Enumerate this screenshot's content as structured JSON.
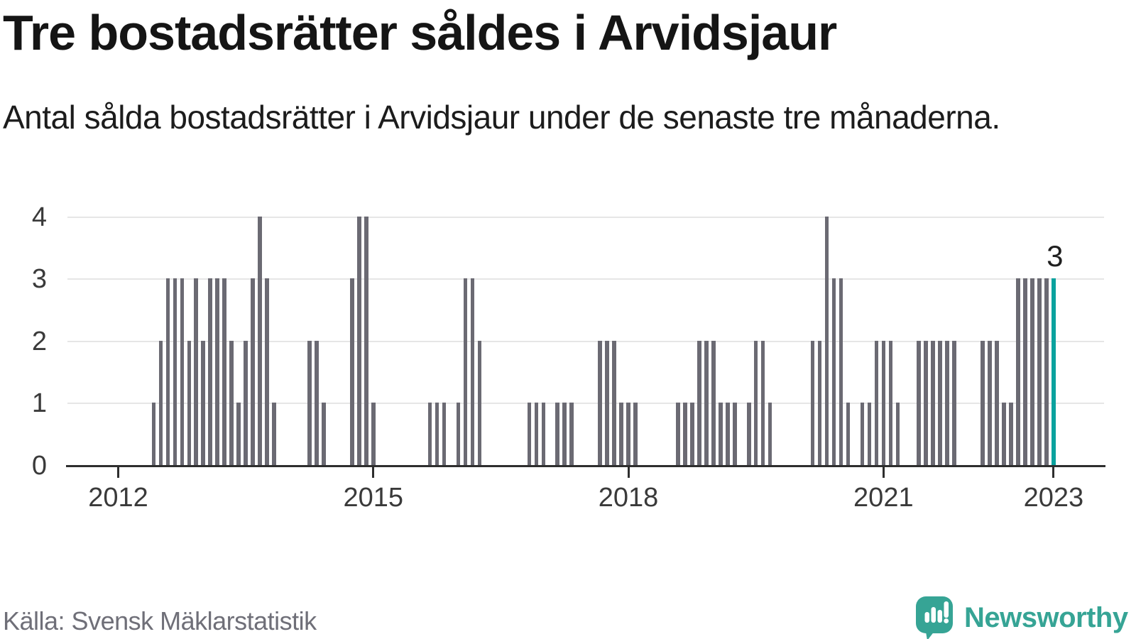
{
  "header": {
    "title": "Tre bostadsrätter såldes i Arvidsjaur",
    "subtitle": "Antal sålda bostadsrätter i Arvidsjaur under de senaste tre månaderna."
  },
  "footer": {
    "source": "Källa: Svensk Mäklarstatistik",
    "logo_text": "Newsworthy",
    "logo_icon": "speech-bubble-bar-chart-exclamation"
  },
  "colors": {
    "bar": "#6b6a73",
    "highlight": "#0aa29e",
    "grid": "#e6e6e6",
    "axis": "#2e2e2e",
    "tick_text": "#3a3a3a",
    "annotation_text": "#1f1f1f",
    "source_text": "#6f6f78",
    "logo_teal": "#36a495"
  },
  "chart_data": {
    "type": "bar",
    "title": "Tre bostadsrätter såldes i Arvidsjaur",
    "subtitle": "Antal sålda bostadsrätter i Arvidsjaur under de senaste tre månaderna.",
    "ylabel": "",
    "xlabel": "",
    "frequency": "monthly",
    "start_month": "2012-06",
    "end_month": "2023-01",
    "start_offset_months_from_jan2012": 5,
    "ylim": [
      0,
      4
    ],
    "yticks": [
      0,
      1,
      2,
      3,
      4
    ],
    "grid": "horizontal",
    "legend": "none",
    "xticks": [
      {
        "label": "2012",
        "month_index": 0
      },
      {
        "label": "2015",
        "month_index": 36
      },
      {
        "label": "2018",
        "month_index": 72
      },
      {
        "label": "2021",
        "month_index": 108
      },
      {
        "label": "2023",
        "month_index": 132
      }
    ],
    "highlight_last": true,
    "last_value_label": "3",
    "values": [
      1,
      2,
      3,
      3,
      3,
      2,
      3,
      2,
      3,
      3,
      3,
      2,
      1,
      2,
      3,
      4,
      3,
      1,
      0,
      0,
      0,
      0,
      2,
      2,
      1,
      0,
      0,
      0,
      3,
      4,
      4,
      1,
      0,
      0,
      0,
      0,
      0,
      0,
      0,
      1,
      1,
      1,
      0,
      1,
      3,
      3,
      2,
      0,
      0,
      0,
      0,
      0,
      0,
      1,
      1,
      1,
      0,
      1,
      1,
      1,
      0,
      0,
      0,
      2,
      2,
      2,
      1,
      1,
      1,
      0,
      0,
      0,
      0,
      0,
      1,
      1,
      1,
      2,
      2,
      2,
      1,
      1,
      1,
      0,
      1,
      2,
      2,
      1,
      0,
      0,
      0,
      0,
      0,
      2,
      2,
      4,
      3,
      3,
      1,
      0,
      1,
      1,
      2,
      2,
      2,
      1,
      0,
      0,
      2,
      2,
      2,
      2,
      2,
      2,
      0,
      0,
      0,
      2,
      2,
      2,
      1,
      1,
      3,
      3,
      3,
      3,
      3,
      3
    ]
  }
}
